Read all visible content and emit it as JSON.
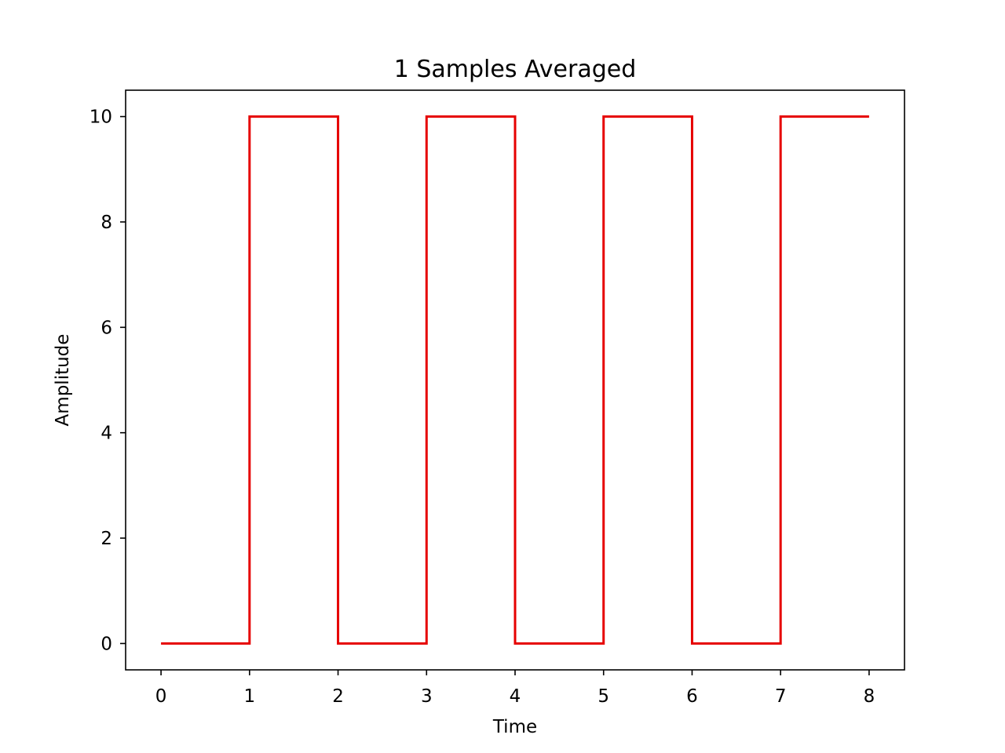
{
  "chart_data": {
    "type": "line",
    "title": "1 Samples Averaged",
    "xlabel": "Time",
    "ylabel": "Amplitude",
    "xlim": [
      -0.4,
      8.4
    ],
    "ylim": [
      -0.5,
      10.5
    ],
    "xticks": [
      0,
      1,
      2,
      3,
      4,
      5,
      6,
      7,
      8
    ],
    "yticks": [
      0,
      2,
      4,
      6,
      8,
      10
    ],
    "grid": false,
    "legend": "none",
    "series": [
      {
        "color": "#e60000",
        "step": "post",
        "x": [
          0,
          1,
          2,
          3,
          4,
          5,
          6,
          7,
          8
        ],
        "y": [
          0,
          10,
          0,
          10,
          0,
          10,
          0,
          10,
          10
        ]
      }
    ]
  }
}
